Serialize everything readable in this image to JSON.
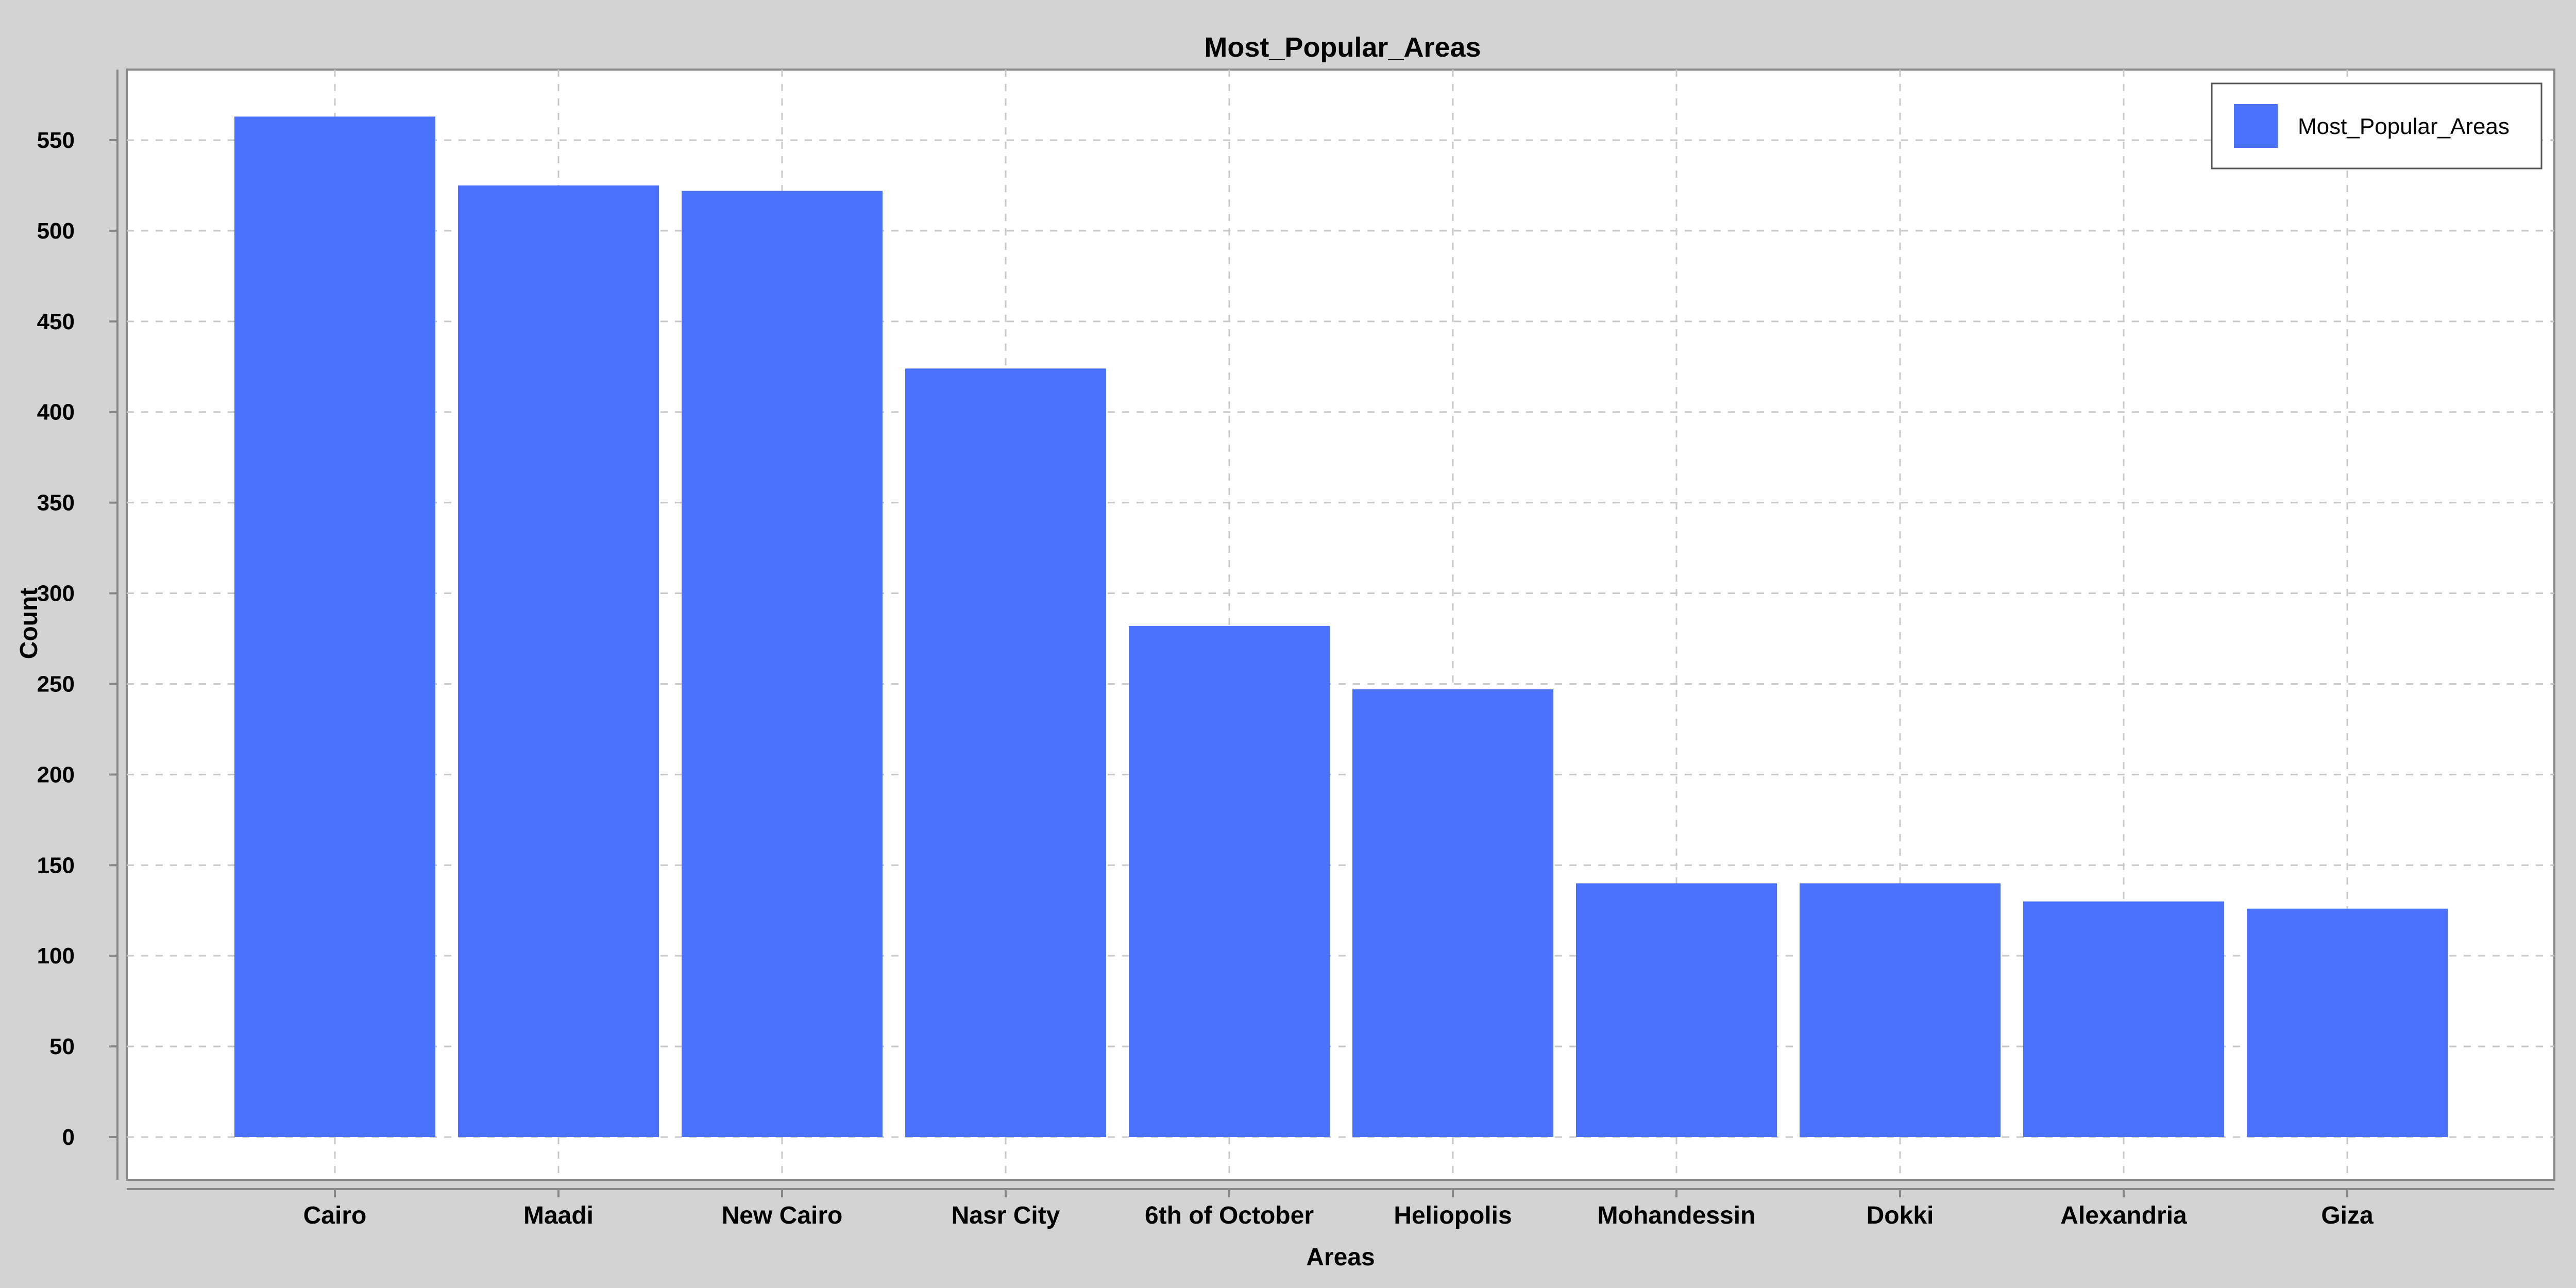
{
  "chart_data": {
    "type": "bar",
    "title": "Most_Popular_Areas",
    "xlabel": "Areas",
    "ylabel": "Count",
    "categories": [
      "Cairo",
      "Maadi",
      "New Cairo",
      "Nasr City",
      "6th of October",
      "Heliopolis",
      "Mohandessin",
      "Dokki",
      "Alexandria",
      "Giza"
    ],
    "series": [
      {
        "name": "Most_Popular_Areas",
        "values": [
          563,
          525,
          522,
          424,
          282,
          247,
          140,
          140,
          130,
          126
        ],
        "color": "#4a72ff"
      }
    ],
    "ylim": [
      0,
      590
    ],
    "yticks": [
      0,
      50,
      100,
      150,
      200,
      250,
      300,
      350,
      400,
      450,
      500,
      550
    ],
    "grid": true,
    "legend_position": "top-right"
  }
}
